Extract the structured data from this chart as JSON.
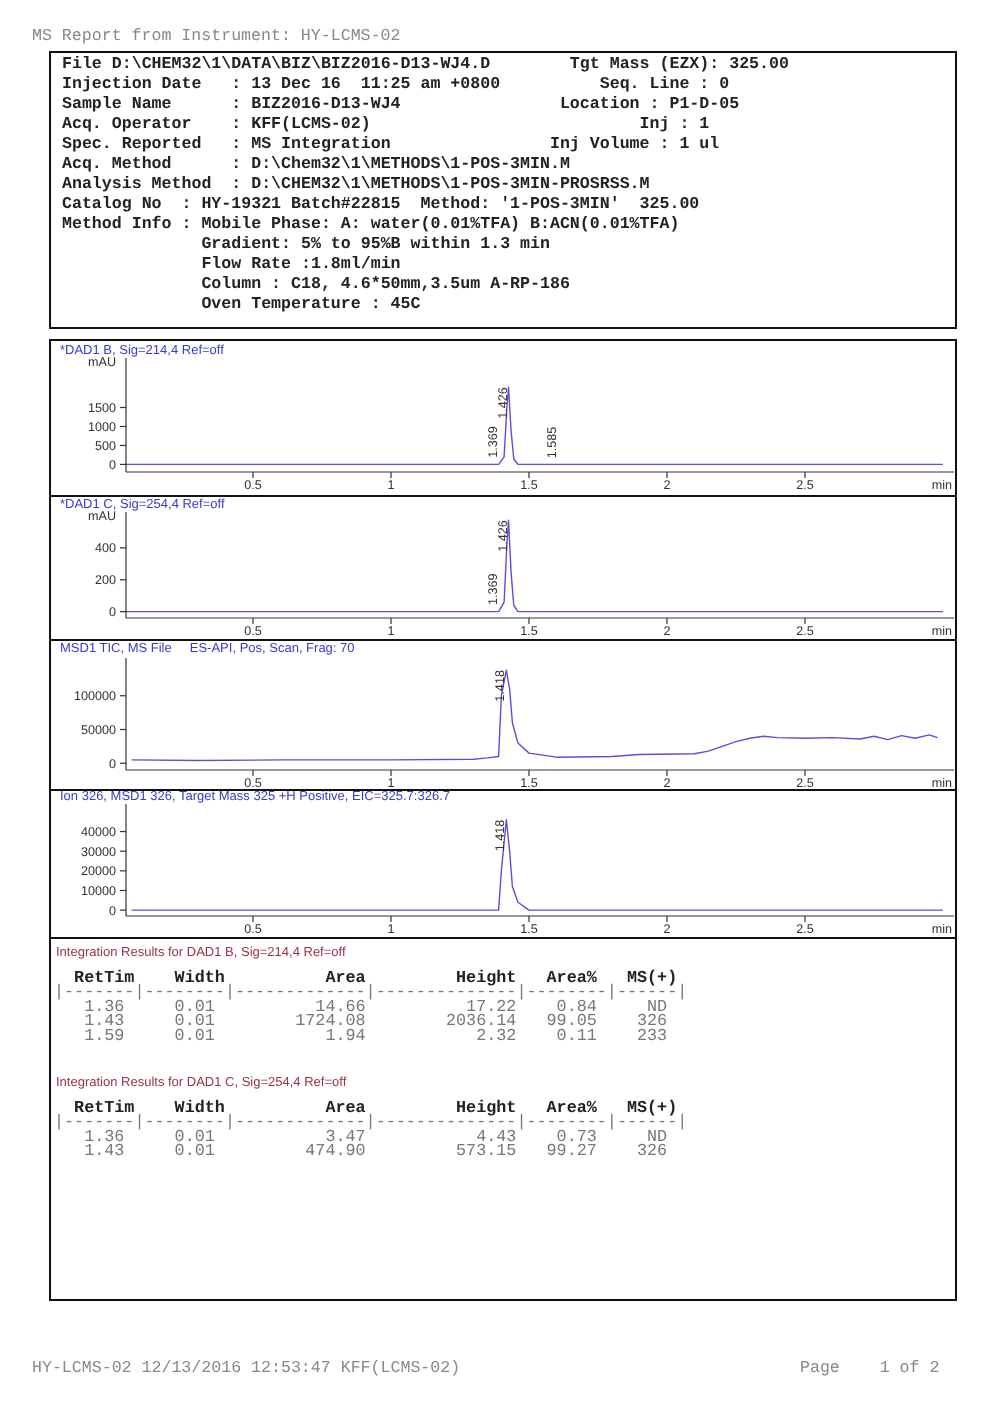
{
  "chart_data": [
    {
      "type": "other",
      "title": "MS Report from Instrument: HY-LCMS-02",
      "annotations": [
        "File D:\\CHEM32\\1\\DATA\\BIZ\\BIZ2016-D13-WJ4.D        Tgt Mass (EZX): 325.00",
        "Injection Date   : 13 Dec 16  11:25 am +0800          Seq. Line : 0",
        "Sample Name      : BIZ2016-D13-WJ4                Location : P1-D-05",
        "Acq. Operator    : KFF(LCMS-02)                           Inj : 1",
        "Spec. Reported   : MS Integration                Inj Volume : 1 ul",
        "Acq. Method      : D:\\Chem32\\1\\METHODS\\1-POS-3MIN.M",
        "Analysis Method  : D:\\CHEM32\\1\\METHODS\\1-POS-3MIN-PROSRSS.M",
        "Catalog No  : HY-19321 Batch#22815  Method: '1-POS-3MIN'  325.00",
        "Method Info : Mobile Phase: A: water(0.01%TFA) B:ACN(0.01%TFA)",
        "              Gradient: 5% to 95%B within 1.3 min",
        "              Flow Rate :1.8ml/min",
        "              Column : C18, 4.6*50mm,3.5um A-RP-186",
        "              Oven Temperature : 45C"
      ]
    },
    {
      "type": "line",
      "title": "*DAD1 B, Sig=214,4 Ref=off",
      "ylabel": "mAU",
      "xlabel": "min",
      "xlim": [
        0.04,
        3.04
      ],
      "ylim": [
        -200,
        2700
      ],
      "xticks": [
        0.5,
        1,
        1.5,
        2,
        2.5
      ],
      "yticks": [
        0,
        500,
        1000,
        1500
      ],
      "series": [
        {
          "color": "#5a50d8",
          "x": [
            0.04,
            0.3,
            0.4,
            0.5,
            1.0,
            1.2,
            1.3,
            1.35,
            1.369,
            1.39,
            1.41,
            1.42,
            1.426,
            1.435,
            1.445,
            1.46,
            1.5,
            1.55,
            1.585,
            1.6,
            1.8,
            2.0,
            2.5,
            2.7,
            3.0
          ],
          "values": [
            0,
            0,
            0,
            0,
            0,
            0,
            0,
            0,
            0,
            0,
            200,
            1500,
            2036,
            900,
            150,
            0,
            0,
            0,
            0,
            0,
            0,
            0,
            0,
            0,
            0
          ]
        }
      ],
      "annotations": [
        {
          "text": "1.369",
          "x": 1.369,
          "y": 17.22
        },
        {
          "text": "1.426",
          "x": 1.426,
          "y": 2036.14
        },
        {
          "text": "1.585",
          "x": 1.585,
          "y": 2.32
        }
      ]
    },
    {
      "type": "line",
      "title": "*DAD1 C, Sig=254,4 Ref=off",
      "ylabel": "mAU",
      "xlabel": "min",
      "xlim": [
        0.04,
        3.04
      ],
      "ylim": [
        -40,
        600
      ],
      "xticks": [
        0.5,
        1,
        1.5,
        2,
        2.5
      ],
      "yticks": [
        0,
        200,
        400
      ],
      "series": [
        {
          "color": "#5a50d8",
          "x": [
            0.04,
            0.4,
            1.0,
            1.3,
            1.36,
            1.39,
            1.41,
            1.42,
            1.426,
            1.435,
            1.445,
            1.46,
            1.5,
            2.0,
            3.0
          ],
          "values": [
            0,
            0,
            0,
            0,
            0,
            0,
            60,
            420,
            573,
            250,
            40,
            0,
            0,
            0,
            0
          ]
        }
      ],
      "annotations": [
        {
          "text": "1.369",
          "x": 1.369,
          "y": 4.43
        },
        {
          "text": "1.426",
          "x": 1.426,
          "y": 573.15
        }
      ]
    },
    {
      "type": "line",
      "title": "MSD1 TIC, MS File     ES-API, Pos, Scan, Frag: 70",
      "xlabel": "min",
      "xlim": [
        0.04,
        3.04
      ],
      "ylim": [
        -10000,
        150000
      ],
      "xticks": [
        0.5,
        1,
        1.5,
        2,
        2.5
      ],
      "yticks": [
        0,
        50000,
        100000
      ],
      "series": [
        {
          "color": "#5a50d8",
          "x": [
            0.06,
            0.3,
            0.6,
            1.0,
            1.3,
            1.35,
            1.39,
            1.4,
            1.418,
            1.43,
            1.44,
            1.46,
            1.5,
            1.55,
            1.6,
            1.8,
            1.9,
            2.1,
            2.15,
            2.2,
            2.25,
            2.3,
            2.35,
            2.4,
            2.5,
            2.6,
            2.7,
            2.75,
            2.8,
            2.85,
            2.9,
            2.95,
            2.98
          ],
          "values": [
            5000,
            4000,
            5000,
            5000,
            6000,
            8000,
            10000,
            100000,
            138000,
            110000,
            60000,
            30000,
            15000,
            12000,
            9000,
            10000,
            13000,
            14000,
            18000,
            25000,
            32000,
            37000,
            40000,
            38000,
            37000,
            38000,
            36000,
            40000,
            35000,
            41000,
            37000,
            42000,
            38000
          ]
        }
      ],
      "annotations": [
        {
          "text": "1.418",
          "x": 1.418,
          "y": 138000
        }
      ]
    },
    {
      "type": "line",
      "title": "Ion 326, MSD1 326, Target Mass 325 +H Positive, EIC=325.7:326.7",
      "xlabel": "min",
      "xlim": [
        0.04,
        3.04
      ],
      "ylim": [
        -3000,
        52000
      ],
      "xticks": [
        0.5,
        1,
        1.5,
        2,
        2.5
      ],
      "yticks": [
        0,
        10000,
        20000,
        30000,
        40000
      ],
      "series": [
        {
          "color": "#5a50d8",
          "x": [
            0.06,
            1.0,
            1.39,
            1.4,
            1.418,
            1.43,
            1.44,
            1.46,
            1.5,
            1.55,
            3.0
          ],
          "values": [
            0,
            0,
            0,
            20000,
            46000,
            30000,
            12000,
            4000,
            0,
            0,
            0
          ]
        }
      ],
      "annotations": [
        {
          "text": "1.418",
          "x": 1.418,
          "y": 46000
        }
      ]
    },
    {
      "type": "other",
      "title": "Integration Results for DAD1 B, Sig=214,4 Ref=off",
      "annotations": [
        "  RetTim    Width          Area         Height   Area%   MS(+)",
        "|-------|--------|-------------|--------------|--------|------|",
        "   1.36     0.01          14.66          17.22    0.84     ND",
        "   1.43     0.01        1724.08        2036.14   99.05    326",
        "   1.59     0.01           1.94           2.32    0.11    233"
      ]
    },
    {
      "type": "other",
      "title": "Integration Results for DAD1 C, Sig=254,4 Ref=off",
      "annotations": [
        "  RetTim    Width          Area         Height   Area%   MS(+)",
        "|-------|--------|-------------|--------------|--------|------|",
        "   1.36     0.01           3.47           4.43    0.73     ND",
        "   1.43     0.01         474.90         573.15   99.27    326"
      ]
    },
    {
      "type": "other",
      "annotations": [
        "HY-LCMS-02 12/13/2016 12:53:47 KFF(LCMS-02)",
        "Page    1 of 2"
      ]
    }
  ]
}
